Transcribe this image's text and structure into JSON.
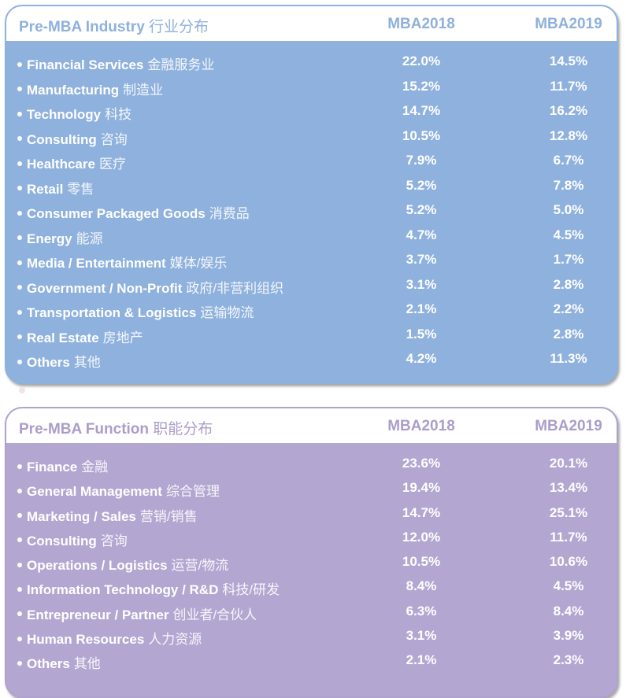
{
  "industry": {
    "title_en": "Pre-MBA Industry",
    "title_zh": "行业分布",
    "columns": [
      "MBA2018",
      "MBA2019"
    ],
    "accent_color": "#8fb1dd",
    "rows": [
      {
        "en": "Financial Services",
        "zh": "金融服务业",
        "mba2018": "22.0%",
        "mba2019": "14.5%"
      },
      {
        "en": "Manufacturing",
        "zh": "制造业",
        "mba2018": "15.2%",
        "mba2019": "11.7%"
      },
      {
        "en": "Technology",
        "zh": "科技",
        "mba2018": "14.7%",
        "mba2019": "16.2%"
      },
      {
        "en": "Consulting",
        "zh": "咨询",
        "mba2018": "10.5%",
        "mba2019": "12.8%"
      },
      {
        "en": "Healthcare",
        "zh": "医疗",
        "mba2018": "7.9%",
        "mba2019": "6.7%"
      },
      {
        "en": "Retail",
        "zh": "零售",
        "mba2018": "5.2%",
        "mba2019": "7.8%"
      },
      {
        "en": "Consumer Packaged Goods",
        "zh": "消费品",
        "mba2018": "5.2%",
        "mba2019": "5.0%"
      },
      {
        "en": "Energy",
        "zh": "能源",
        "mba2018": "4.7%",
        "mba2019": "4.5%"
      },
      {
        "en": "Media / Entertainment",
        "zh": "媒体/娱乐",
        "mba2018": "3.7%",
        "mba2019": "1.7%"
      },
      {
        "en": "Government / Non-Profit",
        "zh": "政府/非营利组织",
        "mba2018": "3.1%",
        "mba2019": "2.8%"
      },
      {
        "en": "Transportation & Logistics",
        "zh": "运输物流",
        "mba2018": "2.1%",
        "mba2019": "2.2%"
      },
      {
        "en": "Real Estate",
        "zh": "房地产",
        "mba2018": "1.5%",
        "mba2019": "2.8%"
      },
      {
        "en": "Others",
        "zh": "其他",
        "mba2018": "4.2%",
        "mba2019": "11.3%"
      }
    ]
  },
  "function": {
    "title_en": "Pre-MBA Function",
    "title_zh": "职能分布",
    "columns": [
      "MBA2018",
      "MBA2019"
    ],
    "accent_color": "#b3a7d1",
    "rows": [
      {
        "en": "Finance",
        "zh": "金融",
        "mba2018": "23.6%",
        "mba2019": "20.1%"
      },
      {
        "en": "General Management",
        "zh": "综合管理",
        "mba2018": "19.4%",
        "mba2019": "13.4%"
      },
      {
        "en": "Marketing / Sales",
        "zh": "营销/销售",
        "mba2018": "14.7%",
        "mba2019": "25.1%"
      },
      {
        "en": "Consulting",
        "zh": "咨询",
        "mba2018": "12.0%",
        "mba2019": "11.7%"
      },
      {
        "en": "Operations / Logistics",
        "zh": "运营/物流",
        "mba2018": "10.5%",
        "mba2019": "10.6%"
      },
      {
        "en": "Information Technology / R&D",
        "zh": "科技/研发",
        "mba2018": "8.4%",
        "mba2019": "4.5%"
      },
      {
        "en": "Entrepreneur / Partner",
        "zh": "创业者/合伙人",
        "mba2018": "6.3%",
        "mba2019": "8.4%"
      },
      {
        "en": "Human Resources",
        "zh": "人力资源",
        "mba2018": "3.1%",
        "mba2019": "3.9%"
      },
      {
        "en": "Others",
        "zh": "其他",
        "mba2018": "2.1%",
        "mba2019": "2.3%"
      }
    ]
  }
}
